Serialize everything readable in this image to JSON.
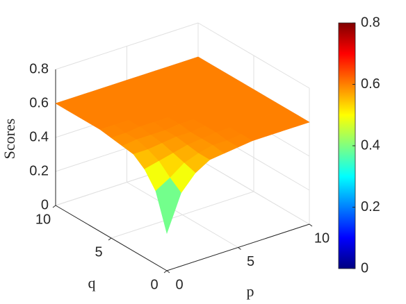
{
  "chart_data": {
    "type": "surface",
    "xlabel": "p",
    "ylabel": "q",
    "zlabel": "Scores",
    "x": [
      0,
      1,
      2,
      3,
      4,
      5,
      6,
      7,
      8,
      9,
      10
    ],
    "y": [
      0,
      1,
      2,
      3,
      4,
      5,
      6,
      7,
      8,
      9,
      10
    ],
    "z": [
      [
        0.22,
        0.43,
        0.52,
        0.57,
        0.58,
        0.59,
        0.6,
        0.6,
        0.6,
        0.6,
        0.6
      ],
      [
        0.43,
        0.48,
        0.54,
        0.57,
        0.59,
        0.59,
        0.6,
        0.6,
        0.6,
        0.6,
        0.6
      ],
      [
        0.52,
        0.54,
        0.56,
        0.58,
        0.59,
        0.6,
        0.6,
        0.6,
        0.6,
        0.6,
        0.6
      ],
      [
        0.57,
        0.57,
        0.58,
        0.59,
        0.59,
        0.6,
        0.6,
        0.6,
        0.6,
        0.6,
        0.6
      ],
      [
        0.58,
        0.59,
        0.59,
        0.59,
        0.6,
        0.6,
        0.6,
        0.6,
        0.6,
        0.6,
        0.6
      ],
      [
        0.59,
        0.59,
        0.6,
        0.6,
        0.6,
        0.6,
        0.6,
        0.6,
        0.6,
        0.6,
        0.6
      ],
      [
        0.6,
        0.6,
        0.6,
        0.6,
        0.6,
        0.6,
        0.6,
        0.6,
        0.6,
        0.6,
        0.6
      ],
      [
        0.6,
        0.6,
        0.6,
        0.6,
        0.6,
        0.6,
        0.6,
        0.6,
        0.6,
        0.6,
        0.6
      ],
      [
        0.6,
        0.6,
        0.6,
        0.6,
        0.6,
        0.6,
        0.6,
        0.6,
        0.6,
        0.6,
        0.6
      ],
      [
        0.6,
        0.6,
        0.6,
        0.6,
        0.6,
        0.6,
        0.6,
        0.6,
        0.6,
        0.6,
        0.6
      ],
      [
        0.6,
        0.6,
        0.6,
        0.6,
        0.6,
        0.6,
        0.6,
        0.6,
        0.6,
        0.6,
        0.6
      ]
    ],
    "xlim": [
      0,
      10
    ],
    "ylim": [
      0,
      10
    ],
    "zlim": [
      0,
      0.8
    ],
    "xticks": [
      0,
      5,
      10
    ],
    "yticks": [
      0,
      5,
      10
    ],
    "zticks": [
      0,
      0.2,
      0.4,
      0.6,
      0.8
    ],
    "grid": true,
    "colormap": "jet",
    "colorbar": {
      "clim": [
        0,
        0.8
      ],
      "ticks": [
        0,
        0.2,
        0.4,
        0.6,
        0.8
      ]
    }
  }
}
